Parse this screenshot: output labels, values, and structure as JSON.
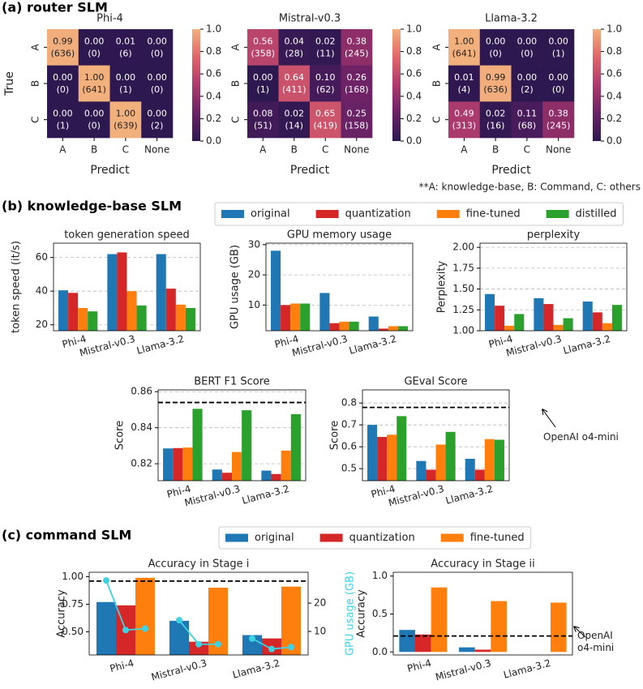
{
  "sections": [
    {
      "title": "(a) router SLM",
      "note": "**A: knowledge-base, B: Command, C: others"
    },
    {
      "title": "(b) knowledge-base SLM"
    },
    {
      "title": "(c) command SLM"
    }
  ],
  "chart_data": [
    {
      "type": "heatmap",
      "title": "Phi-4",
      "xlabel": "Predict",
      "ylabel": "True",
      "x_categories": [
        "A",
        "B",
        "C",
        "None"
      ],
      "y_categories": [
        "A",
        "B",
        "C"
      ],
      "values": [
        [
          0.99,
          0,
          0.01,
          0
        ],
        [
          0,
          1,
          0,
          0
        ],
        [
          0,
          0,
          1,
          0
        ]
      ],
      "value_labels": [
        [
          "0.99",
          "0.00",
          "0.01",
          "0.00"
        ],
        [
          "0.00",
          "1.00",
          "0.00",
          "0.00"
        ],
        [
          "0.00",
          "0.00",
          "1.00",
          "0.00"
        ]
      ],
      "counts": [
        [
          636,
          0,
          6,
          0
        ],
        [
          0,
          641,
          1,
          0
        ],
        [
          1,
          0,
          639,
          2
        ]
      ],
      "count_labels": [
        [
          "(636)",
          "(0)",
          "(6)",
          "(0)"
        ],
        [
          "(0)",
          "(641)",
          "(1)",
          "(0)"
        ],
        [
          "(1)",
          "(0)",
          "(639)",
          "(2)"
        ]
      ],
      "colormap": [
        "#2d1850",
        "#6a2266",
        "#ad3a6c",
        "#e0656a",
        "#f2b07c"
      ],
      "clim": [
        0,
        1
      ],
      "cticks": [
        {
          "value": 0,
          "label": "0.0"
        },
        0.2,
        0.4,
        0.6,
        0.8,
        {
          "value": 1,
          "label": "1.0"
        }
      ]
    },
    {
      "type": "heatmap",
      "title": "Mistral-v0.3",
      "xlabel": "Predict",
      "x_categories": [
        "A",
        "B",
        "C",
        "None"
      ],
      "y_categories": [
        "A",
        "B",
        "C"
      ],
      "values": [
        [
          0.56,
          0.04,
          0.02,
          0.38
        ],
        [
          0,
          0.64,
          0.1,
          0.26
        ],
        [
          0.08,
          0.02,
          0.65,
          0.25
        ]
      ],
      "value_labels": [
        [
          "0.56",
          "0.04",
          "0.02",
          "0.38"
        ],
        [
          "0.00",
          "0.64",
          "0.10",
          "0.26"
        ],
        [
          "0.08",
          "0.02",
          "0.65",
          "0.25"
        ]
      ],
      "counts": [
        [
          358,
          28,
          11,
          245
        ],
        [
          1,
          411,
          62,
          168
        ],
        [
          51,
          14,
          419,
          158
        ]
      ],
      "count_labels": [
        [
          "(358)",
          "(28)",
          "(11)",
          "(245)"
        ],
        [
          "(1)",
          "(411)",
          "(62)",
          "(168)"
        ],
        [
          "(51)",
          "(14)",
          "(419)",
          "(158)"
        ]
      ],
      "colormap": [
        "#2d1850",
        "#6a2266",
        "#ad3a6c",
        "#e0656a",
        "#f2b07c"
      ],
      "clim": [
        0,
        1
      ],
      "cticks": [
        {
          "value": 0,
          "label": "0.0"
        },
        0.2,
        0.4,
        0.6,
        0.8,
        {
          "value": 1,
          "label": "1.0"
        }
      ]
    },
    {
      "type": "heatmap",
      "title": "Llama-3.2",
      "xlabel": "Predict",
      "x_categories": [
        "A",
        "B",
        "C",
        "None"
      ],
      "y_categories": [
        "A",
        "B",
        "C"
      ],
      "values": [
        [
          1,
          0,
          0,
          0
        ],
        [
          0.01,
          0.99,
          0,
          0
        ],
        [
          0.49,
          0.02,
          0.11,
          0.38
        ]
      ],
      "value_labels": [
        [
          "1.00",
          "0.00",
          "0.00",
          "0.00"
        ],
        [
          "0.01",
          "0.99",
          "0.00",
          "0.00"
        ],
        [
          "0.49",
          "0.02",
          "0.11",
          "0.38"
        ]
      ],
      "counts": [
        [
          641,
          0,
          0,
          1
        ],
        [
          4,
          636,
          2,
          0
        ],
        [
          313,
          16,
          68,
          245
        ]
      ],
      "count_labels": [
        [
          "(641)",
          "(0)",
          "(0)",
          "(1)"
        ],
        [
          "(4)",
          "(636)",
          "(2)",
          "(0)"
        ],
        [
          "(313)",
          "(16)",
          "(68)",
          "(245)"
        ]
      ],
      "colormap": [
        "#2d1850",
        "#6a2266",
        "#ad3a6c",
        "#e0656a",
        "#f2b07c"
      ],
      "clim": [
        0,
        1
      ],
      "cticks": [
        {
          "value": 0,
          "label": "0.0"
        },
        0.2,
        0.4,
        0.6,
        0.8,
        {
          "value": 1,
          "label": "1.0"
        }
      ]
    },
    {
      "type": "bar",
      "title": "token generation speed",
      "ylabel": "token speed (it/s)",
      "legend": "top",
      "grid": true,
      "categories": [
        "Phi-4",
        "Mistral-v0.3",
        "Llama-3.2"
      ],
      "series": [
        {
          "name": "original",
          "color": "#1f77b4",
          "values": [
            40.5,
            62,
            62
          ]
        },
        {
          "name": "quantization",
          "color": "#d62728",
          "values": [
            39,
            63,
            41.5
          ]
        },
        {
          "name": "fine-tuned",
          "color": "#ff7f0e",
          "values": [
            30,
            40,
            32
          ]
        },
        {
          "name": "distilled",
          "color": "#2ca02c",
          "values": [
            28,
            31.5,
            30
          ]
        }
      ],
      "ylim": [
        16.5,
        68.5
      ],
      "yticks": [
        20,
        40,
        60
      ]
    },
    {
      "type": "bar",
      "title": "GPU memory usage",
      "ylabel": "GPU usage (GB)",
      "grid": true,
      "categories": [
        "Phi-4",
        "Mistral-v0.3",
        "Llama-3.2"
      ],
      "series": [
        {
          "name": "original",
          "color": "#1f77b4",
          "values": [
            28,
            14,
            6.2
          ]
        },
        {
          "name": "quantization",
          "color": "#d62728",
          "values": [
            10,
            4,
            2.2
          ]
        },
        {
          "name": "fine-tuned",
          "color": "#ff7f0e",
          "values": [
            10.5,
            4.5,
            3
          ]
        },
        {
          "name": "distilled",
          "color": "#2ca02c",
          "values": [
            10.5,
            4.5,
            3
          ]
        }
      ],
      "ylim": [
        1.5,
        30.5
      ],
      "yticks": [
        10,
        20,
        30
      ]
    },
    {
      "type": "bar",
      "title": "perplexity",
      "ylabel": "Perplexity",
      "grid": true,
      "categories": [
        "Phi-4",
        "Mistral-v0.3",
        "Llama-3.2"
      ],
      "series": [
        {
          "name": "original",
          "color": "#1f77b4",
          "values": [
            1.44,
            1.39,
            1.35
          ]
        },
        {
          "name": "quantization",
          "color": "#d62728",
          "values": [
            1.3,
            1.32,
            1.22
          ]
        },
        {
          "name": "fine-tuned",
          "color": "#ff7f0e",
          "values": [
            1.06,
            1.07,
            1.09
          ]
        },
        {
          "name": "distilled",
          "color": "#2ca02c",
          "values": [
            1.2,
            1.15,
            1.31
          ]
        }
      ],
      "ylim": [
        1,
        2.05
      ],
      "yticks": [
        {
          "value": 1,
          "label": "1.00"
        },
        {
          "value": 1.25,
          "label": "1.25"
        },
        {
          "value": 1.5,
          "label": "1.50"
        },
        {
          "value": 1.75,
          "label": "1.75"
        },
        {
          "value": 2,
          "label": "2.00"
        }
      ]
    },
    {
      "type": "bar",
      "title": "BERT F1 Score",
      "ylabel": "Score",
      "grid": true,
      "categories": [
        "Phi-4",
        "Mistral-v0.3",
        "Llama-3.2"
      ],
      "series": [
        {
          "name": "original",
          "color": "#1f77b4",
          "values": [
            0.8285,
            0.8168,
            0.8162
          ]
        },
        {
          "name": "quantization",
          "color": "#d62728",
          "values": [
            0.8287,
            0.815,
            0.8143
          ]
        },
        {
          "name": "fine-tuned",
          "color": "#ff7f0e",
          "values": [
            0.829,
            0.8265,
            0.8273
          ]
        },
        {
          "name": "distilled",
          "color": "#2ca02c",
          "values": [
            0.8505,
            0.8497,
            0.8475
          ]
        }
      ],
      "ylim": [
        0.8106,
        0.861
      ],
      "yticks": [
        0.82,
        0.84,
        0.86
      ],
      "reference": 0.854
    },
    {
      "type": "bar",
      "title": "GEval Score",
      "ylabel": "Score",
      "grid": true,
      "categories": [
        "Phi-4",
        "Mistral-v0.3",
        "Llama-3.2"
      ],
      "series": [
        {
          "name": "original",
          "color": "#1f77b4",
          "values": [
            0.7,
            0.535,
            0.545
          ]
        },
        {
          "name": "quantization",
          "color": "#d62728",
          "values": [
            0.645,
            0.495,
            0.495
          ]
        },
        {
          "name": "fine-tuned",
          "color": "#ff7f0e",
          "values": [
            0.655,
            0.61,
            0.635
          ]
        },
        {
          "name": "distilled",
          "color": "#2ca02c",
          "values": [
            0.74,
            0.668,
            0.632
          ]
        }
      ],
      "ylim": [
        0.445,
        0.86
      ],
      "yticks": [
        0.5,
        0.6,
        0.7,
        0.8
      ],
      "reference": 0.78,
      "reference_label": "OpenAI o4-mini"
    },
    {
      "type": "bar",
      "title": "Accuracy in Stage i",
      "ylabel": "Accuracy",
      "legend": "top",
      "grid": false,
      "categories": [
        "Phi-4",
        "Mistral-v0.3",
        "Llama-3.2"
      ],
      "series": [
        {
          "name": "original",
          "color": "#1f77b4",
          "values": [
            0.77,
            0.6,
            0.47
          ]
        },
        {
          "name": "quantization",
          "color": "#d62728",
          "values": [
            0.74,
            0.41,
            0.44
          ]
        },
        {
          "name": "fine-tuned",
          "color": "#ff7f0e",
          "values": [
            0.99,
            0.9,
            0.91
          ]
        }
      ],
      "ylim": [
        0.29,
        1.04
      ],
      "yticks": [
        {
          "value": 0.5,
          "label": "0.50"
        },
        0.75,
        {
          "value": 1,
          "label": "1.00"
        }
      ],
      "reference": 0.96,
      "y2label": "GPU usage (GB)",
      "y2lim": [
        1.7,
        30.9
      ],
      "y2ticks": [
        10,
        20
      ],
      "line_series": {
        "color": "#3ed3e3",
        "axis": "y2",
        "values": [
          [
            28,
            10.5,
            11
          ],
          [
            14,
            5.5,
            5.5
          ],
          [
            7.5,
            3.8,
            4.5
          ]
        ]
      }
    },
    {
      "type": "bar",
      "title": "Accuracy in Stage ii",
      "ylabel": "Accuracy",
      "grid": false,
      "categories": [
        "Phi-4",
        "Mistral-v0.3",
        "Llama-3.2"
      ],
      "series": [
        {
          "name": "original",
          "color": "#1f77b4",
          "values": [
            0.29,
            0.06,
            0
          ]
        },
        {
          "name": "quantization",
          "color": "#d62728",
          "values": [
            0.23,
            0.03,
            0
          ]
        },
        {
          "name": "fine-tuned",
          "color": "#ff7f0e",
          "values": [
            0.85,
            0.67,
            0.65
          ]
        }
      ],
      "ylim": [
        -0.04,
        1.05
      ],
      "yticks": [
        {
          "value": 0,
          "label": "0.0"
        },
        0.5,
        {
          "value": 1,
          "label": "1.0"
        }
      ],
      "reference": 0.21,
      "reference_label": "OpenAI o4-mini"
    }
  ]
}
